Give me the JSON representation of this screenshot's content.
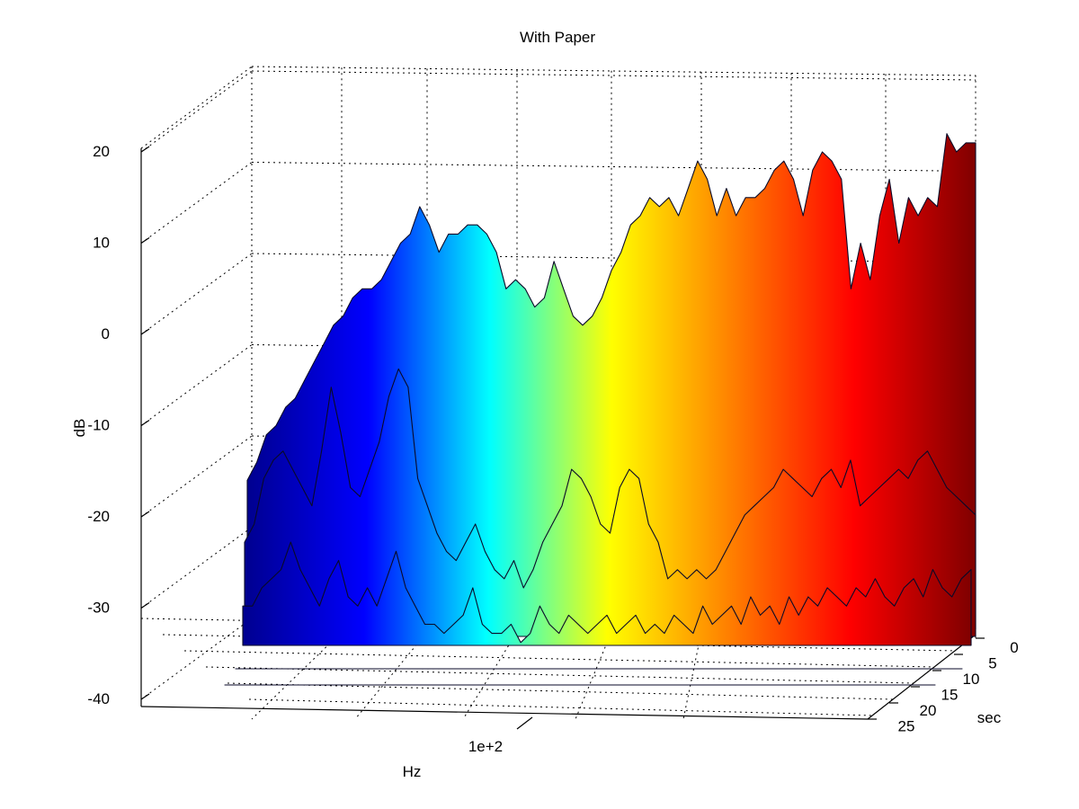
{
  "chart_data": {
    "type": "surface",
    "title": "With Paper",
    "xlabel": "Hz",
    "ylabel": "sec",
    "zlabel": "dB",
    "x_scale": "log",
    "x_ticks": [
      "1e+2"
    ],
    "y_ticks": [
      "0",
      "5",
      "10",
      "15",
      "20",
      "25"
    ],
    "z_ticks": [
      "20",
      "10",
      "0",
      "-10",
      "-20",
      "-30",
      "-40"
    ],
    "zlim": [
      -40,
      20
    ],
    "ylim": [
      0,
      25
    ],
    "grid": true,
    "colormap": "jet",
    "colormap_stops": [
      "#00008f",
      "#0000ff",
      "#00ffff",
      "#ffff00",
      "#ff7f00",
      "#ff0000",
      "#800000"
    ],
    "series": [
      {
        "slice": "t=0s (back)",
        "values_db": [
          -16,
          -14,
          -11,
          -10,
          -8,
          -7,
          -5,
          -3,
          -1,
          1,
          2,
          4,
          5,
          5,
          6,
          8,
          10,
          11,
          14,
          12,
          9,
          11,
          11,
          12,
          12,
          11,
          9,
          5,
          6,
          5,
          3,
          4,
          8,
          5,
          2,
          1,
          2,
          4,
          7,
          9,
          12,
          13,
          15,
          14,
          15,
          13,
          16,
          19,
          17,
          13,
          16,
          13,
          15,
          15,
          16,
          18,
          19,
          17,
          13,
          18,
          20,
          19,
          17,
          5,
          10,
          6,
          13,
          17,
          10,
          15,
          13,
          15,
          14,
          22,
          20,
          21,
          21
        ]
      },
      {
        "slice": "t=5s",
        "values_db": [
          -22,
          -20,
          -15,
          -13,
          -12,
          -14,
          -16,
          -18,
          -12,
          -5,
          -10,
          -16,
          -17,
          -14,
          -11,
          -6,
          -3,
          -5,
          -15,
          -18,
          -21,
          -23,
          -24,
          -22,
          -20,
          -23,
          -25,
          -26,
          -24,
          -27,
          -25,
          -22,
          -20,
          -18,
          -14,
          -15,
          -17,
          -20,
          -21,
          -16,
          -14,
          -15,
          -20,
          -22,
          -26,
          -25,
          -26,
          -25,
          -26,
          -25,
          -23,
          -21,
          -19,
          -18,
          -17,
          -16,
          -14,
          -15,
          -16,
          -17,
          -15,
          -14,
          -16,
          -13,
          -18,
          -17,
          -16,
          -15,
          -14,
          -15,
          -13,
          -12,
          -14,
          -16,
          -17,
          -18,
          -19
        ]
      },
      {
        "slice": "t=10s",
        "values_db": [
          -28,
          -28,
          -26,
          -25,
          -24,
          -21,
          -24,
          -26,
          -28,
          -25,
          -23,
          -27,
          -28,
          -26,
          -28,
          -25,
          -22,
          -26,
          -28,
          -30,
          -30,
          -31,
          -30,
          -29,
          -26,
          -30,
          -31,
          -31,
          -30,
          -32,
          -31,
          -28,
          -30,
          -31,
          -29,
          -30,
          -31,
          -30,
          -29,
          -31,
          -30,
          -29,
          -31,
          -30,
          -31,
          -29,
          -30,
          -31,
          -28,
          -30,
          -29,
          -28,
          -30,
          -27,
          -29,
          -28,
          -30,
          -27,
          -29,
          -27,
          -28,
          -26,
          -27,
          -28,
          -26,
          -27,
          -25,
          -27,
          -28,
          -26,
          -25,
          -27,
          -24,
          -26,
          -27,
          -25,
          -24
        ]
      },
      {
        "slice": "t=15s",
        "values_db": [
          -40,
          -40,
          -40,
          -40,
          -40,
          -39,
          -40,
          -40,
          -40,
          -40,
          -40,
          -39,
          -40,
          -40,
          -40,
          -39,
          -40,
          -40,
          -40,
          -40,
          -38,
          -40,
          -40,
          -40,
          -40,
          -40,
          -40,
          -40,
          -39,
          -40,
          -40,
          -40,
          -37,
          -40,
          -40,
          -38,
          -40,
          -40,
          -40,
          -39,
          -40,
          -38,
          -40,
          -37,
          -40,
          -39,
          -38,
          -40,
          -37,
          -39,
          -38,
          -37,
          -39,
          -36,
          -38,
          -37,
          -39,
          -36,
          -38,
          -37,
          -36,
          -38,
          -35,
          -37,
          -36,
          -38,
          -35,
          -37,
          -36,
          -35,
          -37,
          -36,
          -34,
          -36,
          -35,
          -34,
          -33
        ]
      },
      {
        "slice": "t=20s",
        "values_db": [
          -40,
          -40,
          -40,
          -40,
          -40,
          -40,
          -40,
          -40,
          -40,
          -40,
          -40,
          -40,
          -40,
          -40,
          -40,
          -38,
          -40,
          -35,
          -40,
          -39,
          -40,
          -38,
          -40,
          -40,
          -40,
          -40,
          -40,
          -40,
          -40,
          -40,
          -40,
          -38,
          -40,
          -40,
          -40,
          -40,
          -40,
          -40,
          -40,
          -40,
          -40,
          -40,
          -40,
          -40,
          -40,
          -40,
          -40,
          -40,
          -40,
          -40,
          -40,
          -40,
          -40,
          -40,
          -40,
          -40,
          -40,
          -40,
          -40,
          -40,
          -40,
          -40,
          -40,
          -40,
          -40,
          -40,
          -40,
          -40,
          -40,
          -40,
          -40,
          -40,
          -40,
          -40,
          -40,
          -40,
          -40
        ]
      }
    ]
  }
}
